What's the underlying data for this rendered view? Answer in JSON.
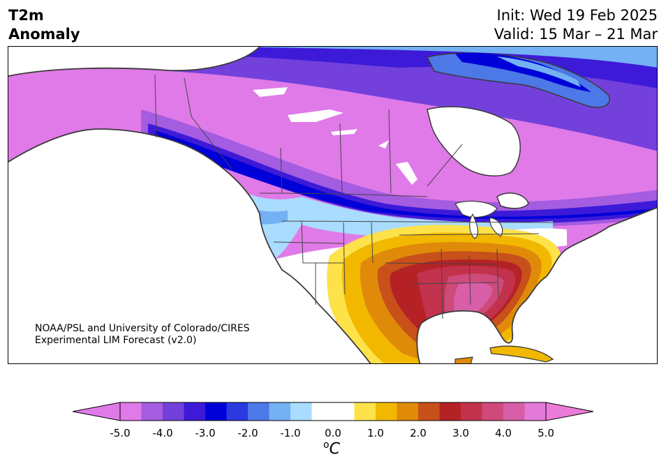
{
  "header": {
    "title_line1": "T2m",
    "title_line2": "Anomaly",
    "init_text": "Init: Wed 19 Feb 2025",
    "valid_text": "Valid: 15 Mar – 21 Mar"
  },
  "map": {
    "region": "North America",
    "land_outline_color": "#3a3a3a",
    "credit_line1": "NOAA/PSL and University of Colorado/CIRES",
    "credit_line2": "Experimental LIM Forecast (v2.0)"
  },
  "colorbar": {
    "tick_labels": [
      "-5.0",
      "-4.0",
      "-3.0",
      "-2.0",
      "-1.0",
      "0.0",
      "1.0",
      "2.0",
      "3.0",
      "4.0",
      "5.0"
    ],
    "units_base": "C",
    "units_sup": "o",
    "under_color": "#e07ae8",
    "over_color": "#ec7ad8",
    "colors": [
      "#e07ae8",
      "#a45ce0",
      "#7340dc",
      "#3d1ad8",
      "#0000d9",
      "#2a3ae0",
      "#4c78e8",
      "#74b0f4",
      "#a9dcfe",
      "#ffffff",
      "#ffffff",
      "#fde24a",
      "#f2b800",
      "#e08a0a",
      "#c8501a",
      "#b52226",
      "#c2324c",
      "#cd4a7a",
      "#d85ea8",
      "#e47ad8"
    ]
  }
}
